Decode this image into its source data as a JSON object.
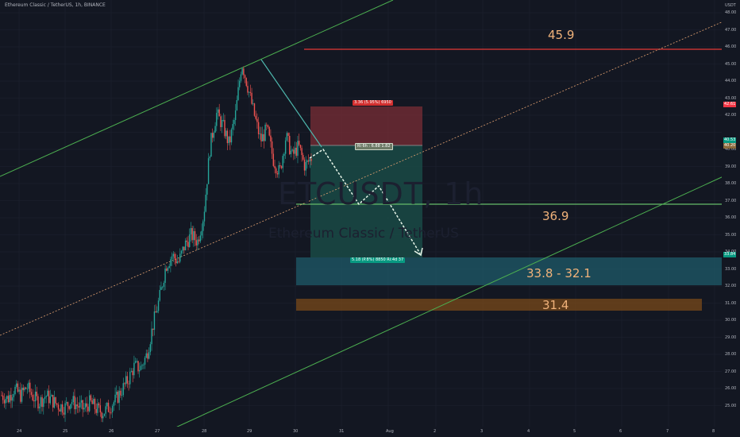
{
  "header": {
    "symbol_line": "Ethereum Classic / TetherUS, 1h, BINANCE"
  },
  "watermark": {
    "symbol": "ETCUSDT, 1h",
    "name": "Ethereum Classic / TetherUS"
  },
  "zones": {
    "resistance_label": "45.9",
    "support_line_label": "36.9",
    "support_zone_label": "33.8 - 32.1",
    "lower_zone_label": "31.4"
  },
  "position_tool": {
    "stop_label": "3.36 (5.95%) 6950",
    "entry_label": "Ri 6h : 6.88 1.82",
    "target_label": "5.18 (P.8%) 8850 Ri:4d 37"
  },
  "y_axis": {
    "currency": "USDT",
    "labels": [
      "48.00",
      "47.00",
      "46.00",
      "45.00",
      "44.00",
      "43.00",
      "42.00",
      "40.00",
      "39.00",
      "38.00",
      "37.00",
      "36.00",
      "35.00",
      "34.00",
      "33.00",
      "32.00",
      "31.00",
      "30.00",
      "29.00",
      "28.00",
      "27.00",
      "26.00",
      "25.00"
    ],
    "badges": [
      {
        "text": "42.61",
        "color": "#f23645"
      },
      {
        "text": "40.53",
        "color": "#089981"
      },
      {
        "text": "40.20",
        "color": "#8a6a3c"
      },
      {
        "text": "33.84",
        "color": "#089981"
      }
    ]
  },
  "x_axis": {
    "labels": [
      "24",
      "25",
      "26",
      "27",
      "28",
      "29",
      "30",
      "31",
      "Aug",
      "2",
      "3",
      "4",
      "5",
      "6",
      "7",
      "8"
    ]
  },
  "colors": {
    "background": "#131722",
    "channel": "#4caf50",
    "resistance": "#e53935",
    "support": "#66bb6a",
    "zone_blue": "#1f5f6e",
    "zone_brown": "#7a4a1a",
    "candle_up": "#26a69a",
    "candle_down": "#ef5350"
  },
  "chart_data": {
    "type": "candlestick",
    "symbol": "ETCUSDT",
    "timeframe": "1h",
    "ylim": [
      24.5,
      48.5
    ],
    "price_path": [
      25.6,
      25.4,
      26.0,
      25.6,
      26.1,
      25.5,
      25.2,
      25.6,
      25.3,
      25.0,
      24.9,
      25.3,
      25.0,
      24.8,
      25.2,
      24.8,
      24.6,
      24.9,
      25.3,
      25.9,
      26.5,
      27.3,
      27.2,
      28.0,
      29.8,
      31.3,
      33.2,
      33.8,
      33.4,
      34.4,
      35.0,
      34.6,
      36.2,
      40.2,
      42.1,
      41.4,
      40.3,
      42.0,
      45.1,
      43.6,
      42.0,
      40.5,
      41.2,
      39.4,
      38.6,
      40.8,
      39.6,
      40.2,
      39.0,
      39.5
    ],
    "annotations": {
      "resistance": 45.9,
      "support_line": 36.9,
      "support_zone": [
        32.1,
        33.8
      ],
      "lower_zone": 31.4,
      "stop": 42.61,
      "entry": 40.2,
      "target": 33.84
    }
  }
}
